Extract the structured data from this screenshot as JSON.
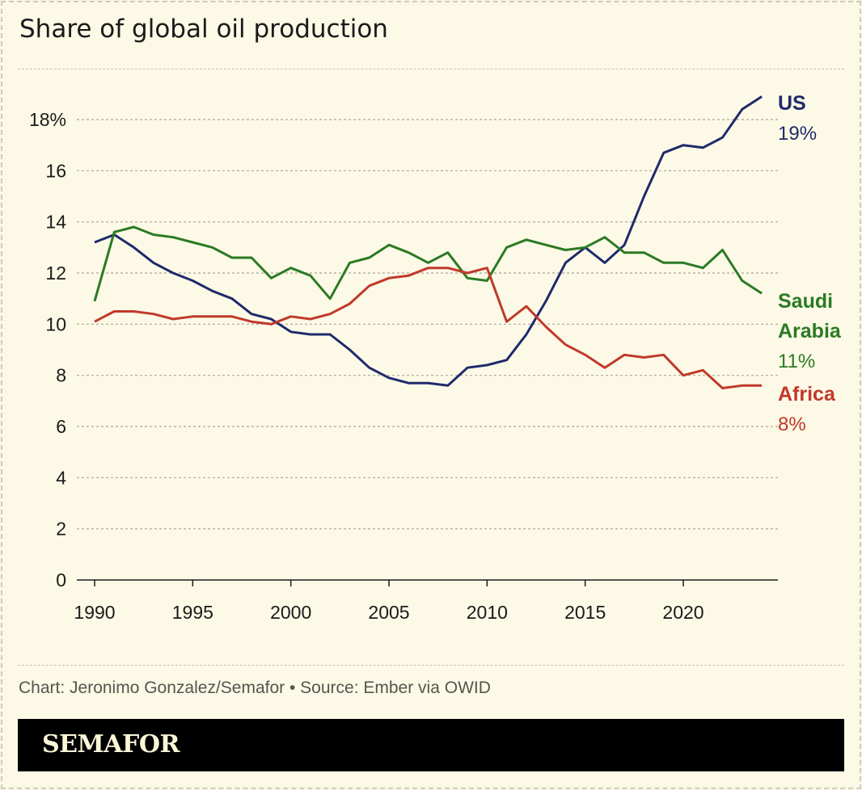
{
  "title": "Share of global oil production",
  "source": "Chart: Jeronimo Gonzalez/Semafor • Source: Ember via OWID",
  "brand": "SEMAFOR",
  "chart_data": {
    "type": "line",
    "title": "Share of global oil production",
    "xlabel": "",
    "ylabel": "",
    "ylim": [
      0,
      18
    ],
    "xlim": [
      1990,
      2024
    ],
    "grid": true,
    "y_ticks": [
      0,
      2,
      4,
      6,
      8,
      10,
      12,
      14,
      16,
      18
    ],
    "y_tick_labels": [
      "0",
      "2",
      "4",
      "6",
      "8",
      "10",
      "12",
      "14",
      "16",
      "18%"
    ],
    "x_ticks": [
      1990,
      1995,
      2000,
      2005,
      2010,
      2015,
      2020
    ],
    "x_tick_labels": [
      "1990",
      "1995",
      "2000",
      "2005",
      "2010",
      "2015",
      "2020"
    ],
    "x": [
      1990,
      1991,
      1992,
      1993,
      1994,
      1995,
      1996,
      1997,
      1998,
      1999,
      2000,
      2001,
      2002,
      2003,
      2004,
      2005,
      2006,
      2007,
      2008,
      2009,
      2010,
      2011,
      2012,
      2013,
      2014,
      2015,
      2016,
      2017,
      2018,
      2019,
      2020,
      2021,
      2022,
      2023,
      2024
    ],
    "series": [
      {
        "name": "US",
        "label_lines": [
          "US"
        ],
        "end_label": "19%",
        "color": "#1f2a6b",
        "values": [
          13.2,
          13.5,
          13.0,
          12.4,
          12.0,
          11.7,
          11.3,
          11.0,
          10.4,
          10.2,
          9.7,
          9.6,
          9.6,
          9.0,
          8.3,
          7.9,
          7.7,
          7.7,
          7.6,
          8.3,
          8.4,
          8.6,
          9.6,
          10.9,
          12.4,
          13.0,
          12.4,
          13.1,
          15.0,
          16.7,
          17.0,
          16.9,
          17.3,
          18.4,
          18.9
        ]
      },
      {
        "name": "Saudi Arabia",
        "label_lines": [
          "Saudi",
          "Arabia"
        ],
        "end_label": "11%",
        "color": "#2b7a23",
        "values": [
          10.9,
          13.6,
          13.8,
          13.5,
          13.4,
          13.2,
          13.0,
          12.6,
          12.6,
          11.8,
          12.2,
          11.9,
          11.0,
          12.4,
          12.6,
          13.1,
          12.8,
          12.4,
          12.8,
          11.8,
          11.7,
          13.0,
          13.3,
          13.1,
          12.9,
          13.0,
          13.4,
          12.8,
          12.8,
          12.4,
          12.4,
          12.2,
          12.9,
          11.7,
          11.2
        ]
      },
      {
        "name": "Africa",
        "label_lines": [
          "Africa"
        ],
        "end_label": "8%",
        "color": "#c0392b",
        "values": [
          10.1,
          10.5,
          10.5,
          10.4,
          10.2,
          10.3,
          10.3,
          10.3,
          10.1,
          10.0,
          10.3,
          10.2,
          10.4,
          10.8,
          11.5,
          11.8,
          11.9,
          12.2,
          12.2,
          12.0,
          12.2,
          10.1,
          10.7,
          9.9,
          9.2,
          8.8,
          8.3,
          8.8,
          8.7,
          8.8,
          8.0,
          8.2,
          7.5,
          7.6,
          7.6
        ]
      }
    ]
  }
}
